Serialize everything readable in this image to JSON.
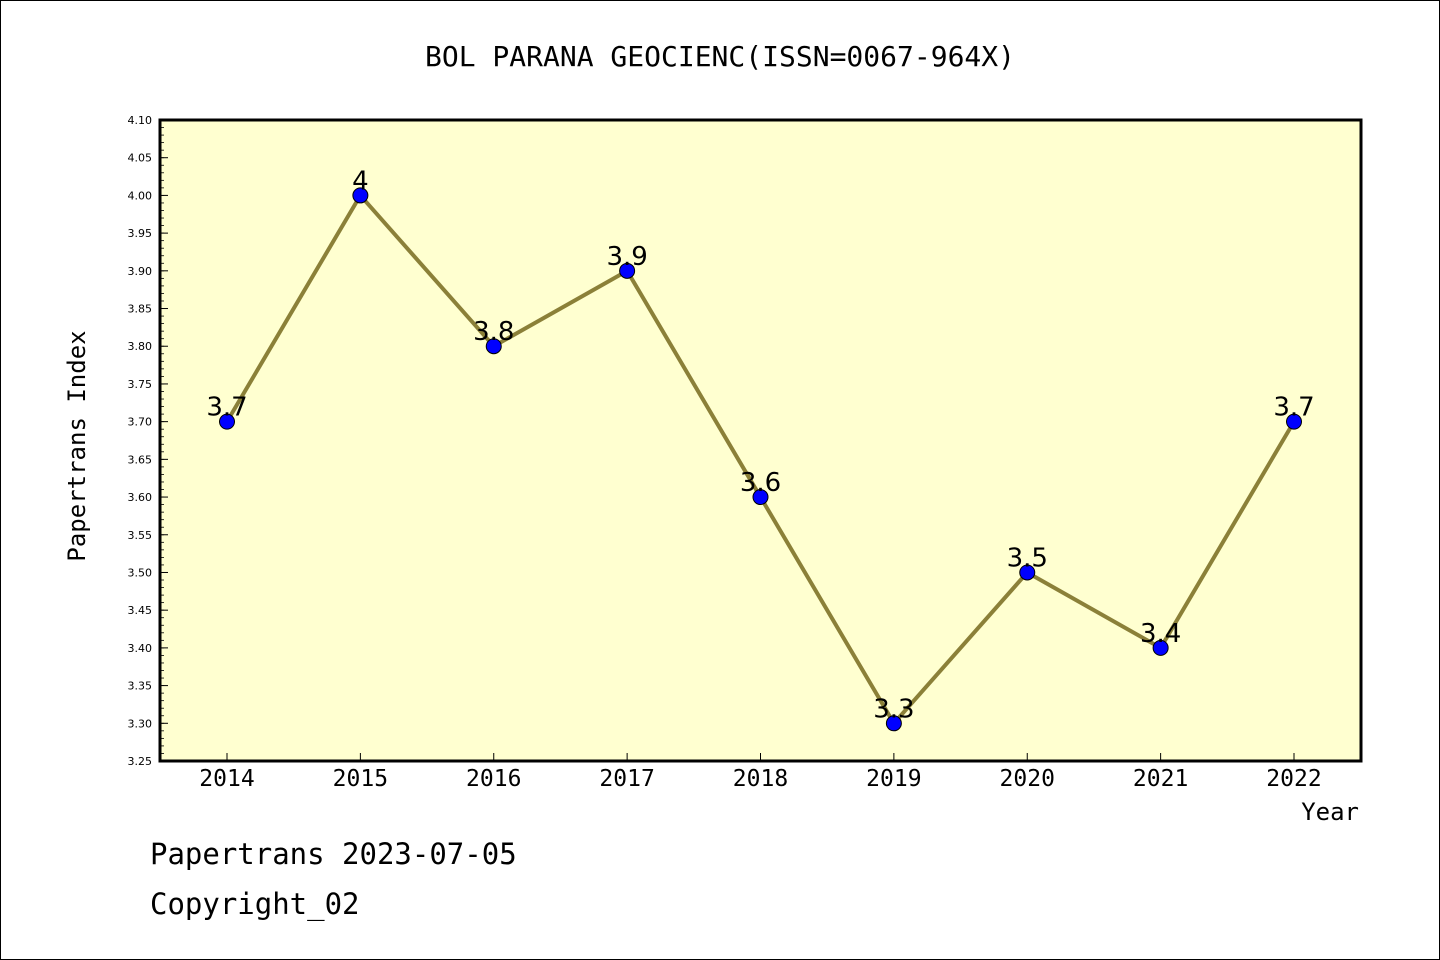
{
  "chart_data": {
    "type": "line",
    "title": "BOL PARANA GEOCIENC(ISSN=0067-964X)",
    "xlabel": "Year",
    "ylabel": "Papertrans Index",
    "x": [
      "2014",
      "2015",
      "2016",
      "2017",
      "2018",
      "2019",
      "2020",
      "2021",
      "2022"
    ],
    "series": [
      {
        "values": [
          3.7,
          4.0,
          3.8,
          3.9,
          3.6,
          3.3,
          3.5,
          3.4,
          3.7
        ],
        "labels": [
          "3.7",
          "4",
          "3.8",
          "3.9",
          "3.6",
          "3.3",
          "3.5",
          "3.4",
          "3.7"
        ],
        "line_color": "#8b8038",
        "marker_color": "#0000ff"
      }
    ],
    "ylim": [
      3.25,
      4.1
    ],
    "yticks": [
      "3.25",
      "3.30",
      "3.35",
      "3.40",
      "3.45",
      "3.50",
      "3.55",
      "3.60",
      "3.65",
      "3.70",
      "3.75",
      "3.80",
      "3.85",
      "3.90",
      "3.95",
      "4.00",
      "4.05",
      "4.10"
    ],
    "grid": false,
    "plot_background": "#ffffd0"
  },
  "footer": {
    "line1": "Papertrans 2023-07-05",
    "line2": "Copyright_02"
  }
}
